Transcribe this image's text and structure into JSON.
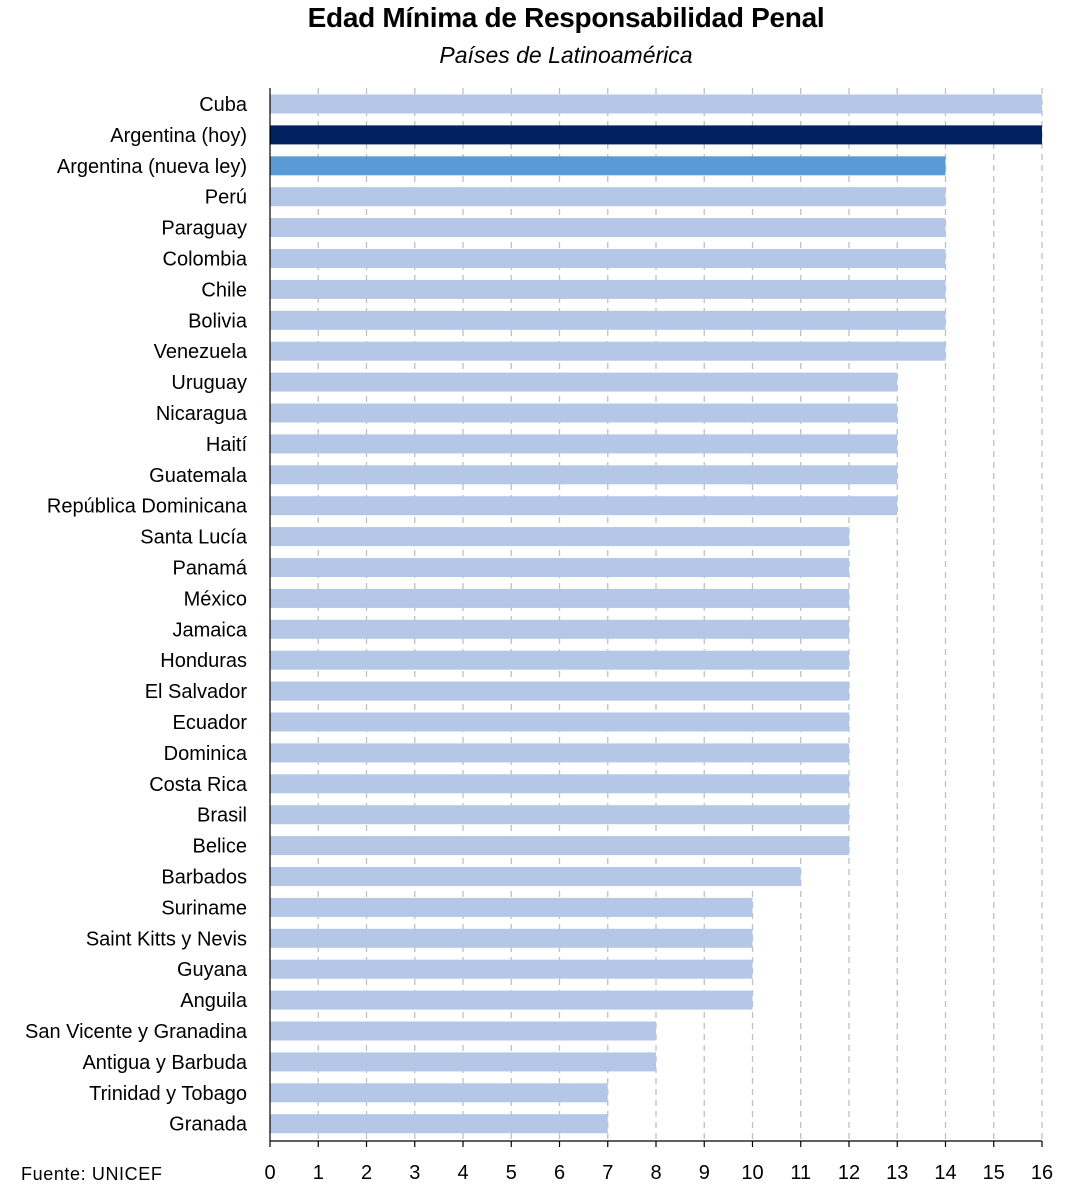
{
  "title": "Edad Mínima de Responsabilidad Penal",
  "subtitle": "Países de Latinoamérica",
  "source": "Fuente: UNICEF",
  "colors": {
    "default_bar": "#b4c7e7",
    "highlight_current": "#002060",
    "highlight_new": "#5b9bd5",
    "grid": "#bfbfbf",
    "axis": "#000000"
  },
  "chart_data": {
    "type": "bar",
    "orientation": "horizontal",
    "title": "Edad Mínima de Responsabilidad Penal",
    "subtitle": "Países de Latinoamérica",
    "xlabel": "",
    "ylabel": "",
    "xlim": [
      0,
      16
    ],
    "ticks": [
      0,
      1,
      2,
      3,
      4,
      5,
      6,
      7,
      8,
      9,
      10,
      11,
      12,
      13,
      14,
      15,
      16
    ],
    "grid": "vertical dashed",
    "legend": "none",
    "categories": [
      "Cuba",
      "Argentina (hoy)",
      "Argentina (nueva ley)",
      "Perú",
      "Paraguay",
      "Colombia",
      "Chile",
      "Bolivia",
      "Venezuela",
      "Uruguay",
      "Nicaragua",
      "Haití",
      "Guatemala",
      "República Dominicana",
      "Santa Lucía",
      "Panamá",
      "México",
      "Jamaica",
      "Honduras",
      "El Salvador",
      "Ecuador",
      "Dominica",
      "Costa Rica",
      "Brasil",
      "Belice",
      "Barbados",
      "Suriname",
      "Saint Kitts y Nevis",
      "Guyana",
      "Anguila",
      "San Vicente y Granadina",
      "Antigua y Barbuda",
      "Trinidad y Tobago",
      "Granada"
    ],
    "values": [
      16,
      16,
      14,
      14,
      14,
      14,
      14,
      14,
      14,
      13,
      13,
      13,
      13,
      13,
      12,
      12,
      12,
      12,
      12,
      12,
      12,
      12,
      12,
      12,
      12,
      11,
      10,
      10,
      10,
      10,
      8,
      8,
      7,
      7
    ],
    "highlights": {
      "Argentina (hoy)": "highlight_current",
      "Argentina (nueva ley)": "highlight_new"
    }
  }
}
